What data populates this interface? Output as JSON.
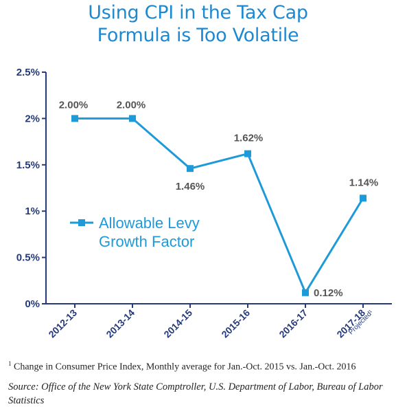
{
  "title": {
    "line1": "Using CPI in the Tax Cap",
    "line2": "Formula is Too Volatile"
  },
  "chart_data": {
    "type": "line",
    "title": "Using CPI in the Tax Cap Formula is Too Volatile",
    "categories": [
      "2012-13",
      "2013-14",
      "2014-15",
      "2015-16",
      "2016-17",
      "2017-18"
    ],
    "category_sublabels": [
      "",
      "",
      "",
      "",
      "",
      "Projected¹"
    ],
    "series": [
      {
        "name": "Allowable Levy Growth Factor",
        "values": [
          2.0,
          2.0,
          1.46,
          1.62,
          0.12,
          1.14
        ],
        "data_labels": [
          "2.00%",
          "2.00%",
          "1.46%",
          "1.62%",
          "0.12%",
          "1.14%"
        ],
        "color": "#1e9ad9"
      }
    ],
    "yticks": [
      "0%",
      "0.5%",
      "1%",
      "1.5%",
      "2%",
      "2.5%"
    ],
    "ylim": [
      0,
      2.5
    ],
    "legend_position": "middle-left",
    "legend_lines": [
      "Allowable Levy",
      "Growth Factor"
    ],
    "grid": false,
    "axis_color": "#243a7a",
    "label_color": "#555555"
  },
  "footnote": {
    "marker": "1",
    "text": " Change in Consumer Price Index, Monthly average for Jan.-Oct. 2015 vs. Jan.-Oct. 2016"
  },
  "source": "Source: Office of the New York State Comptroller, U.S. Department of Labor, Bureau of Labor Statistics"
}
